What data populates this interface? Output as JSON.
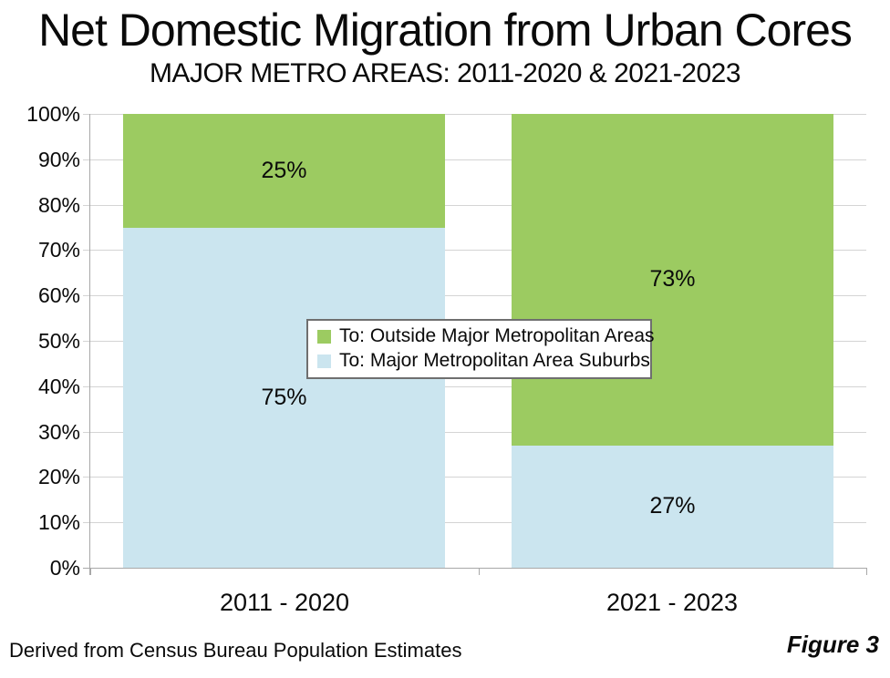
{
  "title": "Net Domestic Migration from Urban Cores",
  "subtitle": "MAJOR METRO AREAS: 2011-2020 & 2021-2023",
  "footer": {
    "source": "Derived from Census Bureau Population Estimates",
    "figure_label": "Figure 3"
  },
  "colors": {
    "green": "#9ccb61",
    "blue": "#cbe5ef",
    "gridline": "#d4d4d4",
    "axis": "#a8a8a8",
    "text": "#0a0a0a"
  },
  "chart_data": {
    "type": "bar",
    "stacked": true,
    "title": "Net Domestic Migration from Urban Cores",
    "subtitle": "MAJOR METRO AREAS: 2011-2020 & 2021-2023",
    "categories": [
      "2011 - 2020",
      "2021 - 2023"
    ],
    "series": [
      {
        "name": "To: Major Metropolitan Area Suburbs",
        "color_key": "blue",
        "values": [
          75,
          27
        ],
        "labels": [
          "75%",
          "27%"
        ]
      },
      {
        "name": "To: Outside Major Metropolitan Areas",
        "color_key": "green",
        "values": [
          25,
          73
        ],
        "labels": [
          "25%",
          "73%"
        ]
      }
    ],
    "y_ticks": [
      "100%",
      "90%",
      "80%",
      "70%",
      "60%",
      "50%",
      "40%",
      "30%",
      "20%",
      "10%",
      "0%"
    ],
    "ylim": [
      0,
      100
    ],
    "grid": true,
    "legend_position": "center-overlay",
    "legend": [
      {
        "label": "To: Outside Major Metropolitan Areas",
        "color_key": "green"
      },
      {
        "label": "To: Major Metropolitan Area Suburbs",
        "color_key": "blue"
      }
    ]
  }
}
